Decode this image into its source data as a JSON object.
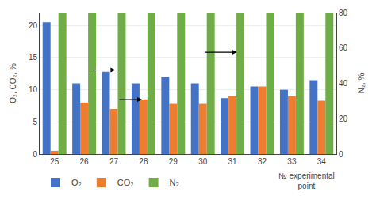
{
  "chart_data": {
    "type": "bar",
    "categories": [
      "25",
      "26",
      "27",
      "28",
      "29",
      "30",
      "31",
      "32",
      "33",
      "34"
    ],
    "series": [
      {
        "name": "O₂",
        "color": "#4472C4",
        "values": [
          20.5,
          11.0,
          12.8,
          11.0,
          12.0,
          11.0,
          8.7,
          10.5,
          10.0,
          11.5
        ]
      },
      {
        "name": "CO₂",
        "color": "#ED7D31",
        "values": [
          0.5,
          8.0,
          7.0,
          8.5,
          7.8,
          7.8,
          9.0,
          10.5,
          9.0,
          8.3
        ]
      },
      {
        "name": "N₂",
        "color": "#70AD47",
        "values": [
          80,
          80,
          80,
          80,
          80,
          80,
          80,
          80,
          80,
          80
        ],
        "axis": "y2"
      }
    ],
    "xlabel": "№ experimental\npoint",
    "ylabel": "O₂, CO₂, %",
    "y2label": "N₂, %",
    "ylim": [
      0,
      22
    ],
    "yticks": [
      0,
      5,
      10,
      15,
      20
    ],
    "y2lim": [
      0,
      80
    ],
    "y2ticks": [
      0,
      20,
      40,
      60,
      80
    ],
    "grid": true,
    "legend": "bottom"
  }
}
